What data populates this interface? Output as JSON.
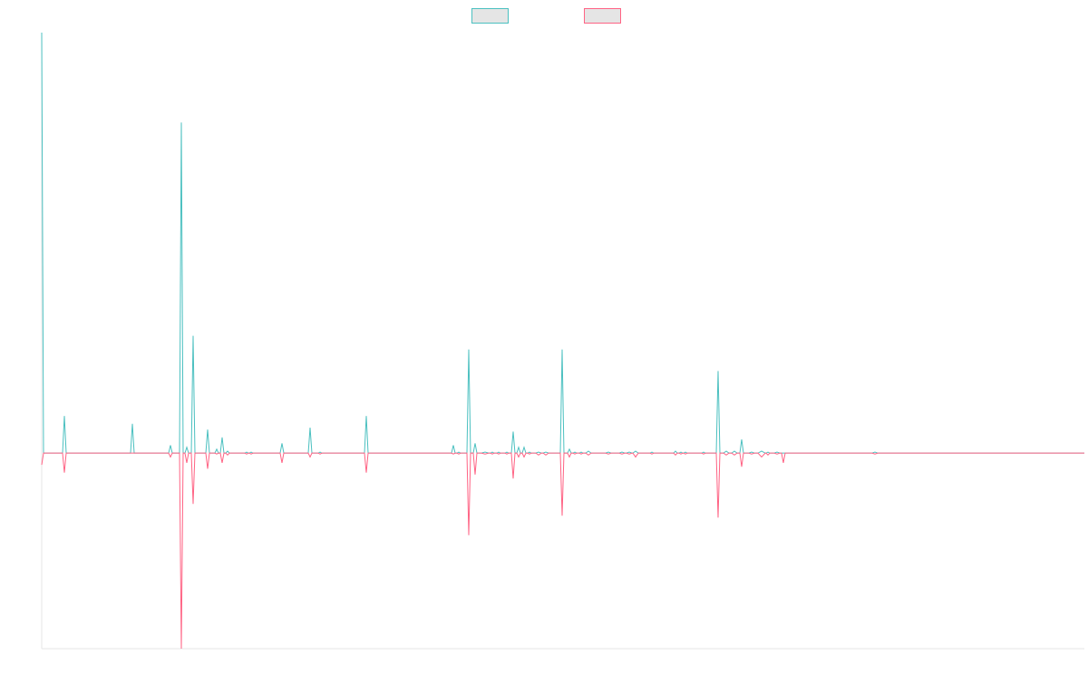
{
  "chart_data": {
    "type": "line",
    "title": "",
    "xlabel": "",
    "ylabel": "",
    "grid": false,
    "legend_placement": "top-center",
    "x_range": [
      0,
      1150
    ],
    "y_range": [
      -1,
      2.15
    ],
    "series_colors": [
      "#4bc0c0",
      "#ff6384"
    ],
    "legend_fill": "#e5e5e5",
    "series": [
      {
        "name": "",
        "color": "#4bc0c0",
        "points": [
          [
            0,
            2.15
          ],
          [
            2,
            0
          ],
          [
            23,
            0
          ],
          [
            25,
            0.19
          ],
          [
            27,
            0
          ],
          [
            98,
            0
          ],
          [
            100,
            0.15
          ],
          [
            102,
            0
          ],
          [
            140,
            0
          ],
          [
            142,
            0.04
          ],
          [
            144,
            0
          ],
          [
            152,
            0
          ],
          [
            154,
            1.69
          ],
          [
            156,
            0
          ],
          [
            158,
            0
          ],
          [
            160,
            0.03
          ],
          [
            162,
            0
          ],
          [
            165,
            0
          ],
          [
            167,
            0.6
          ],
          [
            169,
            0
          ],
          [
            181,
            0
          ],
          [
            183,
            0.12
          ],
          [
            185,
            0
          ],
          [
            191,
            0
          ],
          [
            193,
            0.02
          ],
          [
            195,
            0
          ],
          [
            197,
            0
          ],
          [
            199,
            0.08
          ],
          [
            201,
            0
          ],
          [
            203,
            0
          ],
          [
            205,
            0.01
          ],
          [
            207,
            0
          ],
          [
            224,
            0
          ],
          [
            226,
            0.005
          ],
          [
            228,
            0
          ],
          [
            229,
            0
          ],
          [
            231,
            0.005
          ],
          [
            233,
            0
          ],
          [
            263,
            0
          ],
          [
            265,
            0.05
          ],
          [
            267,
            0
          ],
          [
            294,
            0
          ],
          [
            296,
            0.13
          ],
          [
            298,
            0
          ],
          [
            305,
            0
          ],
          [
            307,
            0.005
          ],
          [
            309,
            0
          ],
          [
            356,
            0
          ],
          [
            358,
            0.19
          ],
          [
            360,
            0
          ],
          [
            452,
            0
          ],
          [
            454,
            0.04
          ],
          [
            456,
            0
          ],
          [
            458,
            0
          ],
          [
            460,
            0.005
          ],
          [
            462,
            0
          ],
          [
            469,
            0
          ],
          [
            471,
            0.53
          ],
          [
            473,
            0
          ],
          [
            476,
            0
          ],
          [
            478,
            0.05
          ],
          [
            480,
            0
          ],
          [
            485,
            0
          ],
          [
            489,
            0.005
          ],
          [
            493,
            0
          ],
          [
            495,
            0
          ],
          [
            497,
            0.005
          ],
          [
            499,
            0
          ],
          [
            502,
            0
          ],
          [
            504,
            0.005
          ],
          [
            506,
            0
          ],
          [
            511,
            0
          ],
          [
            513,
            0.005
          ],
          [
            515,
            0
          ],
          [
            518,
            0
          ],
          [
            520,
            0.11
          ],
          [
            522,
            0
          ],
          [
            524,
            0
          ],
          [
            526,
            0.03
          ],
          [
            528,
            0
          ],
          [
            530,
            0
          ],
          [
            532,
            0.03
          ],
          [
            534,
            0
          ],
          [
            536,
            0
          ],
          [
            538,
            0.005
          ],
          [
            540,
            0
          ],
          [
            545,
            0
          ],
          [
            548,
            0.005
          ],
          [
            551,
            0
          ],
          [
            553,
            0
          ],
          [
            556,
            0.005
          ],
          [
            559,
            0
          ],
          [
            572,
            0
          ],
          [
            574,
            0.53
          ],
          [
            576,
            0
          ],
          [
            580,
            0
          ],
          [
            582,
            0.02
          ],
          [
            584,
            0
          ],
          [
            586,
            0
          ],
          [
            588,
            0.005
          ],
          [
            590,
            0
          ],
          [
            593,
            0
          ],
          [
            595,
            0.005
          ],
          [
            597,
            0
          ],
          [
            600,
            0
          ],
          [
            603,
            0.01
          ],
          [
            606,
            0
          ],
          [
            622,
            0
          ],
          [
            625,
            0.005
          ],
          [
            628,
            0
          ],
          [
            637,
            0
          ],
          [
            640,
            0.005
          ],
          [
            643,
            0
          ],
          [
            645,
            0
          ],
          [
            648,
            0.005
          ],
          [
            651,
            0
          ],
          [
            652,
            0
          ],
          [
            655,
            0.01
          ],
          [
            658,
            0
          ],
          [
            671,
            0
          ],
          [
            673,
            0.005
          ],
          [
            675,
            0
          ],
          [
            697,
            0
          ],
          [
            699,
            0.01
          ],
          [
            701,
            0
          ],
          [
            703,
            0
          ],
          [
            705,
            0.005
          ],
          [
            707,
            0
          ],
          [
            708,
            0
          ],
          [
            710,
            0.005
          ],
          [
            712,
            0
          ],
          [
            728,
            0
          ],
          [
            730,
            0.005
          ],
          [
            732,
            0
          ],
          [
            744,
            0
          ],
          [
            746,
            0.42
          ],
          [
            748,
            0
          ],
          [
            752,
            0
          ],
          [
            755,
            0.01
          ],
          [
            758,
            0
          ],
          [
            761,
            0
          ],
          [
            764,
            0.01
          ],
          [
            767,
            0
          ],
          [
            770,
            0
          ],
          [
            772,
            0.07
          ],
          [
            774,
            0
          ],
          [
            780,
            0
          ],
          [
            783,
            0.005
          ],
          [
            786,
            0
          ],
          [
            790,
            0
          ],
          [
            794,
            0.01
          ],
          [
            798,
            0
          ],
          [
            799,
            0
          ],
          [
            801,
            0.005
          ],
          [
            803,
            0
          ],
          [
            808,
            0
          ],
          [
            811,
            0.005
          ],
          [
            814,
            0
          ],
          [
            916,
            0
          ],
          [
            919,
            0.005
          ],
          [
            922,
            0
          ],
          [
            1150,
            0
          ]
        ]
      },
      {
        "name": "",
        "color": "#ff6384",
        "points": [
          [
            0,
            -0.06
          ],
          [
            2,
            0
          ],
          [
            23,
            0
          ],
          [
            25,
            -0.1
          ],
          [
            27,
            0
          ],
          [
            98,
            0
          ],
          [
            100,
            0
          ],
          [
            102,
            0
          ],
          [
            140,
            0
          ],
          [
            142,
            -0.02
          ],
          [
            144,
            0
          ],
          [
            152,
            0
          ],
          [
            154,
            -1.0
          ],
          [
            156,
            0
          ],
          [
            158,
            0
          ],
          [
            160,
            -0.05
          ],
          [
            162,
            0
          ],
          [
            165,
            0
          ],
          [
            167,
            -0.26
          ],
          [
            169,
            0
          ],
          [
            181,
            0
          ],
          [
            183,
            -0.08
          ],
          [
            185,
            0
          ],
          [
            191,
            0
          ],
          [
            193,
            -0.005
          ],
          [
            195,
            0
          ],
          [
            197,
            0
          ],
          [
            199,
            -0.05
          ],
          [
            201,
            0
          ],
          [
            203,
            0
          ],
          [
            205,
            -0.01
          ],
          [
            207,
            0
          ],
          [
            224,
            0
          ],
          [
            226,
            -0.005
          ],
          [
            228,
            0
          ],
          [
            229,
            0
          ],
          [
            231,
            -0.005
          ],
          [
            233,
            0
          ],
          [
            263,
            0
          ],
          [
            265,
            -0.05
          ],
          [
            267,
            0
          ],
          [
            294,
            0
          ],
          [
            296,
            -0.02
          ],
          [
            298,
            0
          ],
          [
            305,
            0
          ],
          [
            307,
            -0.005
          ],
          [
            309,
            0
          ],
          [
            356,
            0
          ],
          [
            358,
            -0.1
          ],
          [
            360,
            0
          ],
          [
            452,
            0
          ],
          [
            454,
            -0.005
          ],
          [
            456,
            0
          ],
          [
            458,
            0
          ],
          [
            460,
            -0.005
          ],
          [
            462,
            0
          ],
          [
            469,
            0
          ],
          [
            471,
            -0.42
          ],
          [
            473,
            0
          ],
          [
            476,
            0
          ],
          [
            478,
            -0.11
          ],
          [
            480,
            0
          ],
          [
            485,
            0
          ],
          [
            489,
            -0.005
          ],
          [
            493,
            0
          ],
          [
            495,
            0
          ],
          [
            497,
            -0.005
          ],
          [
            499,
            0
          ],
          [
            502,
            0
          ],
          [
            504,
            -0.005
          ],
          [
            506,
            0
          ],
          [
            511,
            0
          ],
          [
            513,
            -0.005
          ],
          [
            515,
            0
          ],
          [
            518,
            0
          ],
          [
            520,
            -0.13
          ],
          [
            522,
            0
          ],
          [
            524,
            0
          ],
          [
            526,
            -0.02
          ],
          [
            528,
            0
          ],
          [
            530,
            0
          ],
          [
            532,
            -0.02
          ],
          [
            534,
            0
          ],
          [
            536,
            0
          ],
          [
            538,
            -0.005
          ],
          [
            540,
            0
          ],
          [
            545,
            0
          ],
          [
            548,
            -0.01
          ],
          [
            551,
            0
          ],
          [
            553,
            0
          ],
          [
            556,
            -0.01
          ],
          [
            559,
            0
          ],
          [
            572,
            0
          ],
          [
            574,
            -0.32
          ],
          [
            576,
            0
          ],
          [
            580,
            0
          ],
          [
            582,
            -0.02
          ],
          [
            584,
            0
          ],
          [
            586,
            0
          ],
          [
            588,
            -0.005
          ],
          [
            590,
            0
          ],
          [
            593,
            0
          ],
          [
            595,
            -0.005
          ],
          [
            597,
            0
          ],
          [
            600,
            0
          ],
          [
            603,
            -0.01
          ],
          [
            606,
            0
          ],
          [
            622,
            0
          ],
          [
            625,
            -0.005
          ],
          [
            628,
            0
          ],
          [
            637,
            0
          ],
          [
            640,
            -0.005
          ],
          [
            643,
            0
          ],
          [
            645,
            0
          ],
          [
            648,
            -0.005
          ],
          [
            651,
            0
          ],
          [
            652,
            0
          ],
          [
            655,
            -0.02
          ],
          [
            658,
            0
          ],
          [
            671,
            0
          ],
          [
            673,
            -0.005
          ],
          [
            675,
            0
          ],
          [
            697,
            0
          ],
          [
            699,
            -0.01
          ],
          [
            701,
            0
          ],
          [
            703,
            0
          ],
          [
            705,
            -0.005
          ],
          [
            707,
            0
          ],
          [
            708,
            0
          ],
          [
            710,
            -0.005
          ],
          [
            712,
            0
          ],
          [
            728,
            0
          ],
          [
            730,
            -0.005
          ],
          [
            732,
            0
          ],
          [
            744,
            0
          ],
          [
            746,
            -0.33
          ],
          [
            748,
            0
          ],
          [
            752,
            0
          ],
          [
            755,
            -0.01
          ],
          [
            758,
            0
          ],
          [
            761,
            0
          ],
          [
            764,
            -0.01
          ],
          [
            767,
            0
          ],
          [
            770,
            0
          ],
          [
            772,
            -0.07
          ],
          [
            774,
            0
          ],
          [
            780,
            0
          ],
          [
            783,
            -0.005
          ],
          [
            786,
            0
          ],
          [
            790,
            0
          ],
          [
            794,
            -0.02
          ],
          [
            798,
            0
          ],
          [
            799,
            0
          ],
          [
            801,
            -0.01
          ],
          [
            803,
            0
          ],
          [
            808,
            0
          ],
          [
            811,
            -0.005
          ],
          [
            814,
            0
          ],
          [
            816,
            0
          ],
          [
            818,
            -0.05
          ],
          [
            820,
            0
          ],
          [
            916,
            0
          ],
          [
            919,
            -0.005
          ],
          [
            922,
            0
          ],
          [
            1150,
            0
          ]
        ]
      }
    ]
  }
}
